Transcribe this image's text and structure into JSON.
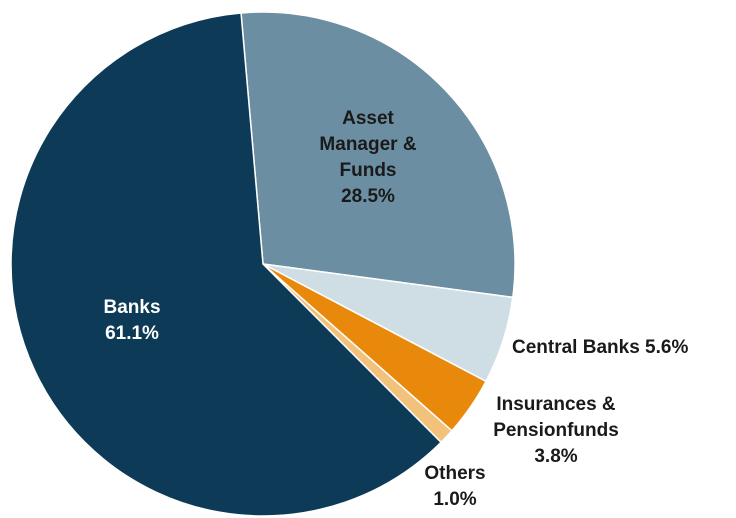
{
  "chart_data": {
    "type": "pie",
    "title": "",
    "slices": [
      {
        "name": "Asset Manager & Funds",
        "label_lines": [
          "Asset",
          "Manager &",
          "Funds",
          "28.5%"
        ],
        "value": 28.5,
        "color": "#6b8ea2",
        "label_color": "#1a1a1a"
      },
      {
        "name": "Central Banks",
        "label_lines": [
          "Central Banks 5.6%"
        ],
        "value": 5.6,
        "color": "#cfdde5",
        "label_color": "#1a1a1a"
      },
      {
        "name": "Insurances & Pensionfunds",
        "label_lines": [
          "Insurances &",
          "Pensionfunds",
          "3.8%"
        ],
        "value": 3.8,
        "color": "#e8890b",
        "label_color": "#1a1a1a"
      },
      {
        "name": "Others",
        "label_lines": [
          "Others",
          "1.0%"
        ],
        "value": 1.0,
        "color": "#f2c27a",
        "label_color": "#1a1a1a"
      },
      {
        "name": "Banks",
        "label_lines": [
          "Banks",
          "61.1%"
        ],
        "value": 61.1,
        "color": "#0d3b57",
        "label_color": "#ffffff"
      }
    ]
  }
}
